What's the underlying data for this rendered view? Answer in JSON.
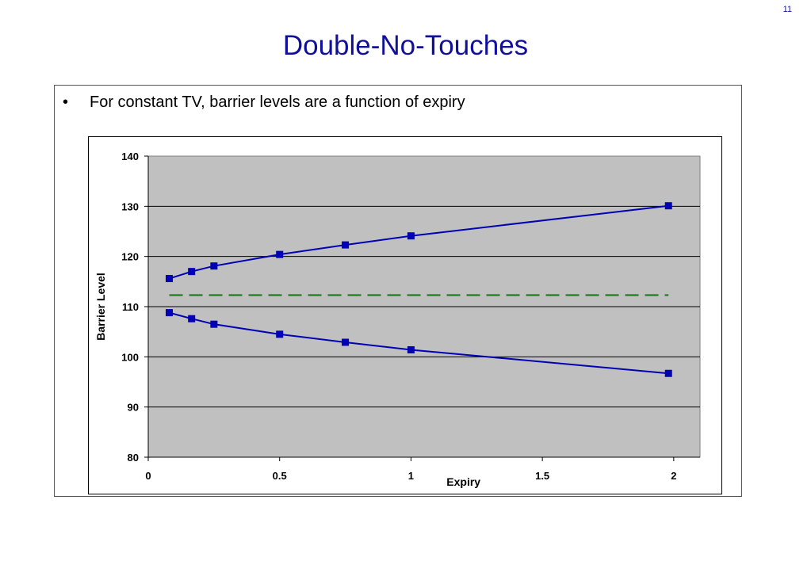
{
  "page": {
    "number": "11",
    "title": "Double-No-Touches"
  },
  "bullets": [
    "For constant TV, barrier levels are a function of expiry"
  ],
  "bullet_symbol": "•",
  "colors": {
    "title": "#10109a",
    "series_line": "#0000b4",
    "reference_line": "#1a7a1a",
    "plot_background": "#c0c0c0"
  },
  "chart_data": {
    "type": "line",
    "xlabel": "Expiry",
    "ylabel": "Barrier Level",
    "xlim": [
      0,
      2.1
    ],
    "ylim": [
      80,
      140
    ],
    "x_ticks": [
      0,
      0.5,
      1,
      1.5,
      2
    ],
    "x_tick_labels": [
      "0",
      "0.5",
      "1",
      "1.5",
      "2"
    ],
    "y_ticks": [
      80,
      90,
      100,
      110,
      120,
      130,
      140
    ],
    "y_tick_labels": [
      "80",
      "90",
      "100",
      "110",
      "120",
      "130",
      "140"
    ],
    "grid": "horizontal",
    "plot_background": "gray",
    "series": [
      {
        "x": [
          0.08,
          0.165,
          0.25,
          0.5,
          0.75,
          1,
          1.98
        ],
        "y": [
          115.6,
          117.0,
          118.1,
          120.4,
          122.3,
          124.1,
          130.1
        ],
        "style": "solid",
        "marker": "square"
      },
      {
        "x": [
          0.08,
          0.165,
          0.25,
          0.5,
          0.75,
          1,
          1.98
        ],
        "y": [
          108.8,
          107.6,
          106.5,
          104.5,
          102.9,
          101.4,
          96.7
        ],
        "style": "solid",
        "marker": "square"
      },
      {
        "x": [
          0.08,
          1.98
        ],
        "y": [
          112.3,
          112.3
        ],
        "style": "dashed",
        "marker": "none"
      }
    ]
  }
}
